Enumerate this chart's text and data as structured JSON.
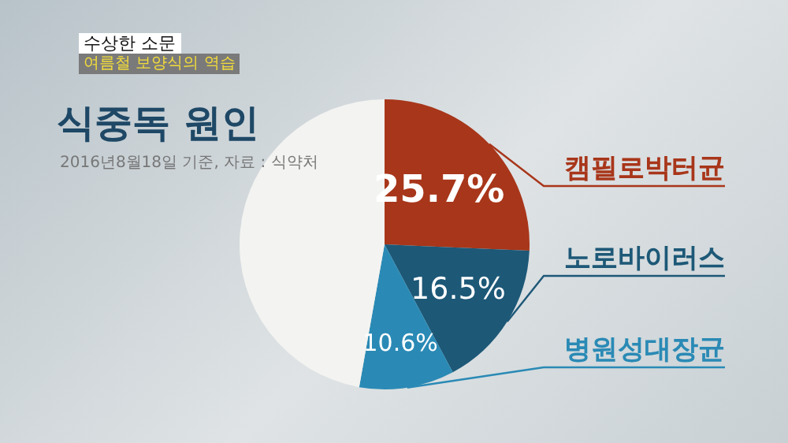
{
  "chart_data": {
    "type": "pie",
    "title": "식중독 원인",
    "subtitle": "2016년8월18일 기준, 자료 : 식약처",
    "annotations": [
      "수상한 소문",
      "여름철 보양식의 역습"
    ],
    "categories": [
      "캠필로박터균",
      "노로바이러스",
      "병원성대장균",
      null
    ],
    "values": [
      25.7,
      16.5,
      10.6,
      47.2
    ],
    "colors": [
      "#a8361a",
      "#1d5877",
      "#2a8ab5",
      "#f3f3f1"
    ],
    "value_labels": [
      "25.7%",
      "16.5%",
      "10.6%",
      null
    ],
    "legend": false
  }
}
